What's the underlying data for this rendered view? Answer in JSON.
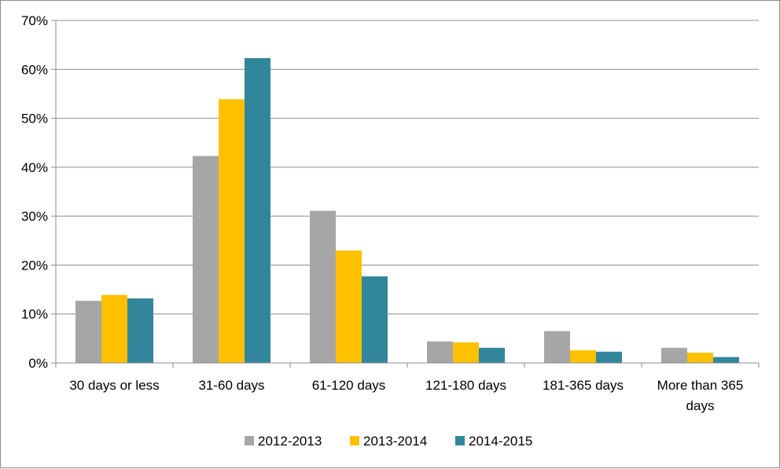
{
  "chart_data": {
    "type": "bar",
    "categories": [
      "30 days or less",
      "31-60 days",
      "61-120 days",
      "121-180 days",
      "181-365 days",
      "More than 365 days"
    ],
    "category_lines": [
      [
        "30 days or less"
      ],
      [
        "31-60 days"
      ],
      [
        "61-120 days"
      ],
      [
        "121-180 days"
      ],
      [
        "181-365 days"
      ],
      [
        "More than 365",
        "days"
      ]
    ],
    "series": [
      {
        "name": "2012-2013",
        "color": "#a6a6a6",
        "values": [
          12.7,
          42.3,
          31.1,
          4.4,
          6.5,
          3.1
        ]
      },
      {
        "name": "2013-2014",
        "color": "#ffc000",
        "values": [
          13.9,
          53.9,
          23.0,
          4.2,
          2.6,
          2.1
        ]
      },
      {
        "name": "2014-2015",
        "color": "#31869b",
        "values": [
          13.2,
          62.3,
          17.7,
          3.1,
          2.3,
          1.2
        ]
      }
    ],
    "yticks": [
      "0%",
      "10%",
      "20%",
      "30%",
      "40%",
      "50%",
      "60%",
      "70%"
    ],
    "ylim": [
      0,
      70
    ],
    "ylabel": "",
    "xlabel": "",
    "title": "",
    "grid": true,
    "legend_position": "bottom"
  }
}
